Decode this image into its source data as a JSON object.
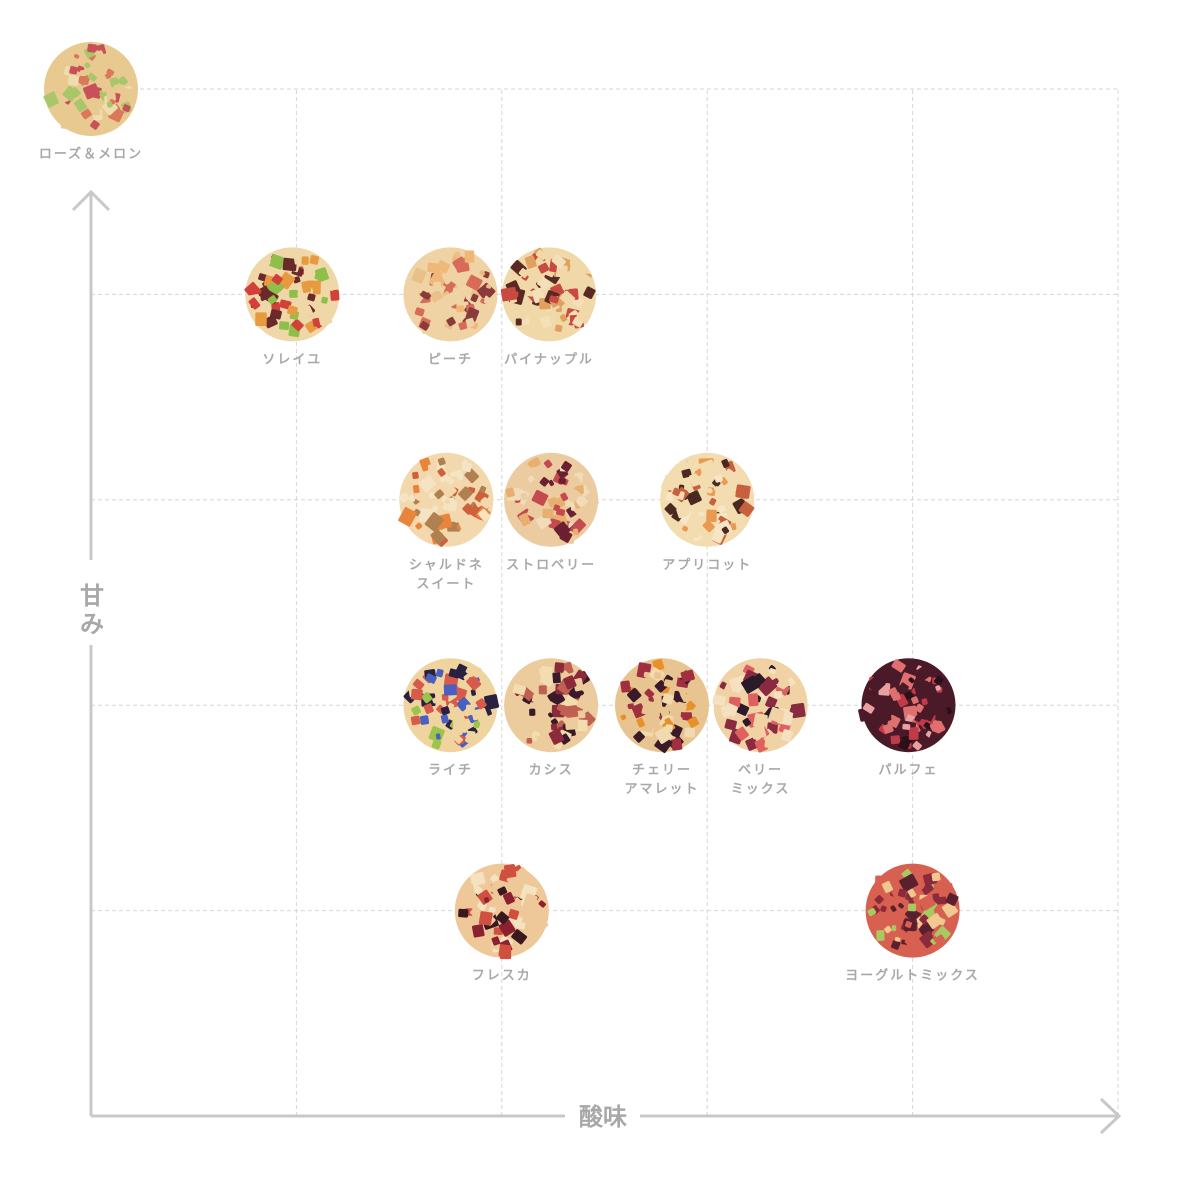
{
  "chart_data": {
    "type": "scatter",
    "xlabel": "酸味",
    "ylabel": "甘み",
    "xlim": [
      0,
      5
    ],
    "ylim": [
      0,
      5
    ],
    "grid": true,
    "colors": {
      "axis": "#c8c8c8",
      "grid": "#d6d6d6",
      "label": "#a8a8a8"
    },
    "points": [
      {
        "name": "ローズ＆メロン",
        "lines": [
          "ローズ＆メロン"
        ],
        "x": 0.0,
        "y": 5.0,
        "palette": [
          "#e8c98f",
          "#d9785a",
          "#a9c76a",
          "#f0dcb0",
          "#c9505a"
        ]
      },
      {
        "name": "ソレイユ",
        "lines": [
          "ソレイユ"
        ],
        "x": 0.98,
        "y": 4.0,
        "palette": [
          "#f0d7a8",
          "#d2403c",
          "#8fbf4a",
          "#e89a40",
          "#6a2a2a"
        ]
      },
      {
        "name": "ピーチ",
        "lines": [
          "ピーチ"
        ],
        "x": 1.75,
        "y": 4.0,
        "palette": [
          "#efd3a4",
          "#d86a5a",
          "#f0b878",
          "#8a3a3a",
          "#e8c088"
        ]
      },
      {
        "name": "パイナップル",
        "lines": [
          "パイナップル"
        ],
        "x": 2.23,
        "y": 4.0,
        "palette": [
          "#f0d8a8",
          "#e0a060",
          "#c84a40",
          "#5a2a22",
          "#f2e0b8"
        ]
      },
      {
        "name": "シャルドネ スイート",
        "lines": [
          "シャルドネ",
          "スイート"
        ],
        "x": 1.73,
        "y": 3.0,
        "palette": [
          "#f2d8ac",
          "#e8843c",
          "#d0603c",
          "#b08050",
          "#f5e4c4"
        ]
      },
      {
        "name": "ストロベリー",
        "lines": [
          "ストロベリー"
        ],
        "x": 2.24,
        "y": 3.0,
        "palette": [
          "#eccba0",
          "#c44a50",
          "#6a2030",
          "#e8b070",
          "#f0dcb8"
        ]
      },
      {
        "name": "アプリコット",
        "lines": [
          "アプリコット"
        ],
        "x": 3.0,
        "y": 3.0,
        "palette": [
          "#f2dcb0",
          "#e89a50",
          "#c86040",
          "#4a2a20",
          "#f6e6c6"
        ]
      },
      {
        "name": "ライチ",
        "lines": [
          "ライチ"
        ],
        "x": 1.75,
        "y": 2.0,
        "palette": [
          "#f0d4a0",
          "#9cc44a",
          "#4a60c0",
          "#2a2040",
          "#d85a4a"
        ]
      },
      {
        "name": "カシス",
        "lines": [
          "カシス"
        ],
        "x": 2.24,
        "y": 2.0,
        "palette": [
          "#eccc9c",
          "#3a1a2a",
          "#8a2a3a",
          "#f2dcb0",
          "#c06050"
        ]
      },
      {
        "name": "チェリー アマレット",
        "lines": [
          "チェリー",
          "アマレット"
        ],
        "x": 2.78,
        "y": 2.0,
        "palette": [
          "#e8c490",
          "#3a1a28",
          "#e8902a",
          "#a03040",
          "#f2dab0"
        ]
      },
      {
        "name": "ベリー ミックス",
        "lines": [
          "ベリー",
          "ミックス"
        ],
        "x": 3.26,
        "y": 2.0,
        "palette": [
          "#f0d2a4",
          "#e06060",
          "#2a1a2a",
          "#8a2a40",
          "#f5e0c0"
        ]
      },
      {
        "name": "パルフェ",
        "lines": [
          "パルフェ"
        ],
        "x": 3.98,
        "y": 2.0,
        "palette": [
          "#4a1a28",
          "#c03a4a",
          "#e8a0a0",
          "#2a1018",
          "#e07070"
        ]
      },
      {
        "name": "フレスカ",
        "lines": [
          "フレスカ"
        ],
        "x": 2.0,
        "y": 1.0,
        "palette": [
          "#eec898",
          "#8a2030",
          "#d05040",
          "#f5e2c0",
          "#3a1820"
        ]
      },
      {
        "name": "ヨーグルトミックス",
        "lines": [
          "ヨーグルトミックス"
        ],
        "x": 4.0,
        "y": 1.0,
        "palette": [
          "#d86050",
          "#5a2030",
          "#a8c860",
          "#f0c890",
          "#8a2a3a"
        ]
      }
    ]
  }
}
